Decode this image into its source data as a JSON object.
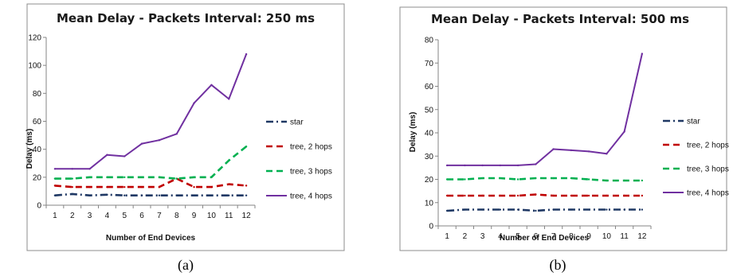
{
  "chart_data": [
    {
      "type": "line",
      "title": "Mean Delay - Packets Interval: 250 ms",
      "xlabel": "Number of End Devices",
      "ylabel": "Delay (ms)",
      "caption": "(a)",
      "x": [
        1,
        2,
        3,
        4,
        5,
        6,
        7,
        8,
        9,
        10,
        11,
        12
      ],
      "xticks": [
        "1",
        "2",
        "3",
        "4",
        "5",
        "6",
        "7",
        "8",
        "9",
        "10",
        "11",
        "12"
      ],
      "ylim": [
        0,
        120
      ],
      "yticks": [
        "0",
        "20",
        "40",
        "60",
        "80",
        "100",
        "120"
      ],
      "grid": false,
      "legend_position": "right",
      "series": [
        {
          "name": "star",
          "color": "#1f3864",
          "dash": "dashdot",
          "values": [
            7,
            8,
            7,
            7.5,
            7,
            7,
            7,
            7,
            7,
            7,
            7,
            7
          ]
        },
        {
          "name": "tree, 2 hops",
          "color": "#c00000",
          "dash": "dash",
          "values": [
            14,
            13,
            13,
            13,
            13,
            13,
            13,
            19,
            13,
            13,
            15,
            14
          ]
        },
        {
          "name": "tree, 3 hops",
          "color": "#00b050",
          "dash": "dash",
          "values": [
            19,
            19,
            20,
            20,
            20,
            20,
            20,
            19,
            20,
            20,
            32,
            42
          ]
        },
        {
          "name": "tree, 4 hops",
          "color": "#7030a0",
          "dash": "solid",
          "values": [
            26,
            26,
            26,
            36,
            35,
            44,
            46.5,
            51,
            73,
            86,
            76,
            108
          ]
        }
      ]
    },
    {
      "type": "line",
      "title": "Mean Delay - Packets Interval: 500 ms",
      "xlabel": "Number of End Devices",
      "ylabel": "Delay (ms)",
      "caption": "(b)",
      "x": [
        1,
        2,
        3,
        4,
        5,
        6,
        7,
        8,
        9,
        10,
        11,
        12
      ],
      "xticks": [
        "1",
        "2",
        "3",
        "4",
        "5",
        "6",
        "7",
        "8",
        "9",
        "10",
        "11",
        "12"
      ],
      "ylim": [
        0,
        80
      ],
      "yticks": [
        "0",
        "10",
        "20",
        "30",
        "40",
        "50",
        "60",
        "70",
        "80"
      ],
      "grid": false,
      "legend_position": "right",
      "series": [
        {
          "name": "star",
          "color": "#1f3864",
          "dash": "dashdot",
          "values": [
            6.5,
            7,
            7,
            7,
            7,
            6.5,
            7,
            7,
            7,
            7,
            7,
            7
          ]
        },
        {
          "name": "tree, 2 hops",
          "color": "#c00000",
          "dash": "dash",
          "values": [
            13,
            13,
            13,
            13,
            13,
            13.5,
            13,
            13,
            13,
            13,
            13,
            13
          ]
        },
        {
          "name": "tree, 3 hops",
          "color": "#00b050",
          "dash": "dash",
          "values": [
            20,
            20,
            20.5,
            20.5,
            20,
            20.5,
            20.5,
            20.5,
            20,
            19.5,
            19.5,
            19.5
          ]
        },
        {
          "name": "tree, 4 hops",
          "color": "#7030a0",
          "dash": "solid",
          "values": [
            26,
            26,
            26,
            26,
            26,
            26.5,
            33,
            32.5,
            32,
            31,
            40.5,
            74
          ]
        }
      ]
    }
  ]
}
